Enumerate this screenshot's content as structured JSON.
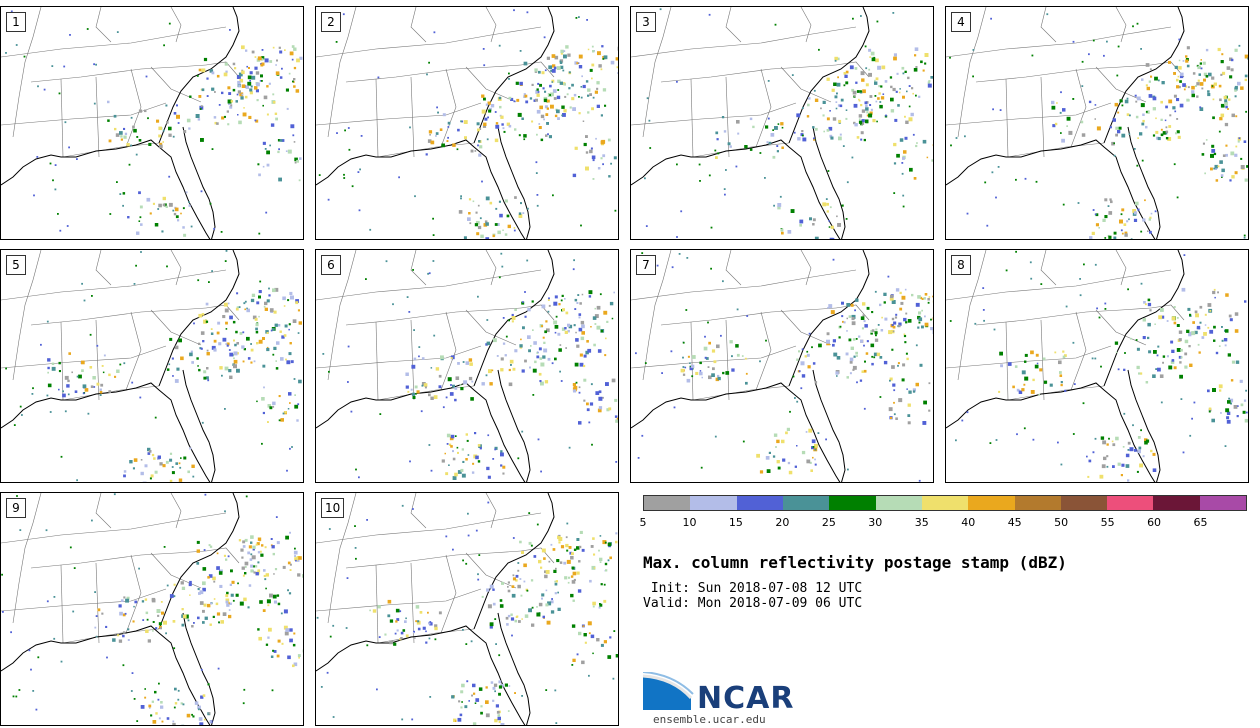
{
  "panels": [
    {
      "label": "1",
      "seed": 11
    },
    {
      "label": "2",
      "seed": 23
    },
    {
      "label": "3",
      "seed": 37
    },
    {
      "label": "4",
      "seed": 41
    },
    {
      "label": "5",
      "seed": 53
    },
    {
      "label": "6",
      "seed": 67
    },
    {
      "label": "7",
      "seed": 71
    },
    {
      "label": "8",
      "seed": 83
    },
    {
      "label": "9",
      "seed": 97
    },
    {
      "label": "10",
      "seed": 101
    }
  ],
  "colorbar": {
    "colors": [
      "#a0a0a0",
      "#b3bde8",
      "#5161d6",
      "#4a9297",
      "#008000",
      "#b6dcb6",
      "#efe06c",
      "#eaa81e",
      "#b37a2d",
      "#8a5437",
      "#ed4f7b",
      "#6b1637",
      "#a84aa7"
    ],
    "ticks": [
      "5",
      "10",
      "15",
      "20",
      "25",
      "30",
      "35",
      "40",
      "45",
      "50",
      "55",
      "60",
      "65"
    ]
  },
  "title": "Max. column reflectivity postage stamp (dBZ)",
  "init": " Init: Sun 2018-07-08 12 UTC",
  "valid": "Valid: Mon 2018-07-09 06 UTC",
  "logo_text": "NCAR",
  "website": "ensemble.ucar.edu"
}
